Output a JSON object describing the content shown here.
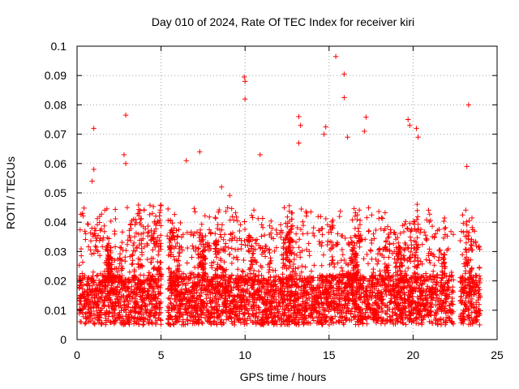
{
  "chart_data": {
    "type": "scatter",
    "title": "Day 010 of 2024, Rate Of TEC Index for receiver kiri",
    "xlabel": "GPS time / hours",
    "ylabel": "ROTI / TECUs",
    "xlim": [
      0,
      25
    ],
    "ylim": [
      0,
      0.1
    ],
    "xticks": [
      0,
      5,
      10,
      15,
      20,
      25
    ],
    "xtick_labels": [
      "0",
      "5",
      "10",
      "15",
      "20",
      "25"
    ],
    "yticks": [
      0,
      0.01,
      0.02,
      0.03,
      0.04,
      0.05,
      0.06,
      0.07,
      0.08,
      0.09,
      0.1
    ],
    "ytick_labels": [
      "0",
      "0.01",
      "0.02",
      "0.03",
      "0.04",
      "0.05",
      "0.06",
      "0.07",
      "0.08",
      "0.09",
      "0.1"
    ],
    "grid": true,
    "marker": "+",
    "color": "#ff0000",
    "data_gaps_hours": [
      [
        5.0,
        5.4
      ],
      [
        22.4,
        22.8
      ]
    ],
    "typical_range": [
      0.005,
      0.03
    ],
    "outliers": [
      {
        "x": 1.0,
        "y": 0.072
      },
      {
        "x": 1.0,
        "y": 0.058
      },
      {
        "x": 0.9,
        "y": 0.054
      },
      {
        "x": 2.9,
        "y": 0.0765
      },
      {
        "x": 2.8,
        "y": 0.063
      },
      {
        "x": 2.9,
        "y": 0.06
      },
      {
        "x": 6.5,
        "y": 0.061
      },
      {
        "x": 7.3,
        "y": 0.064
      },
      {
        "x": 8.6,
        "y": 0.052
      },
      {
        "x": 9.95,
        "y": 0.0895
      },
      {
        "x": 10.0,
        "y": 0.088
      },
      {
        "x": 10.0,
        "y": 0.082
      },
      {
        "x": 10.9,
        "y": 0.063
      },
      {
        "x": 13.2,
        "y": 0.076
      },
      {
        "x": 13.3,
        "y": 0.073
      },
      {
        "x": 13.2,
        "y": 0.067
      },
      {
        "x": 14.8,
        "y": 0.0725
      },
      {
        "x": 14.7,
        "y": 0.07
      },
      {
        "x": 15.4,
        "y": 0.0965
      },
      {
        "x": 15.9,
        "y": 0.0905
      },
      {
        "x": 15.9,
        "y": 0.0825
      },
      {
        "x": 16.1,
        "y": 0.069
      },
      {
        "x": 17.2,
        "y": 0.0758
      },
      {
        "x": 17.1,
        "y": 0.071
      },
      {
        "x": 19.7,
        "y": 0.075
      },
      {
        "x": 19.8,
        "y": 0.073
      },
      {
        "x": 20.2,
        "y": 0.072
      },
      {
        "x": 20.3,
        "y": 0.069
      },
      {
        "x": 23.3,
        "y": 0.08
      },
      {
        "x": 23.2,
        "y": 0.059
      }
    ]
  }
}
